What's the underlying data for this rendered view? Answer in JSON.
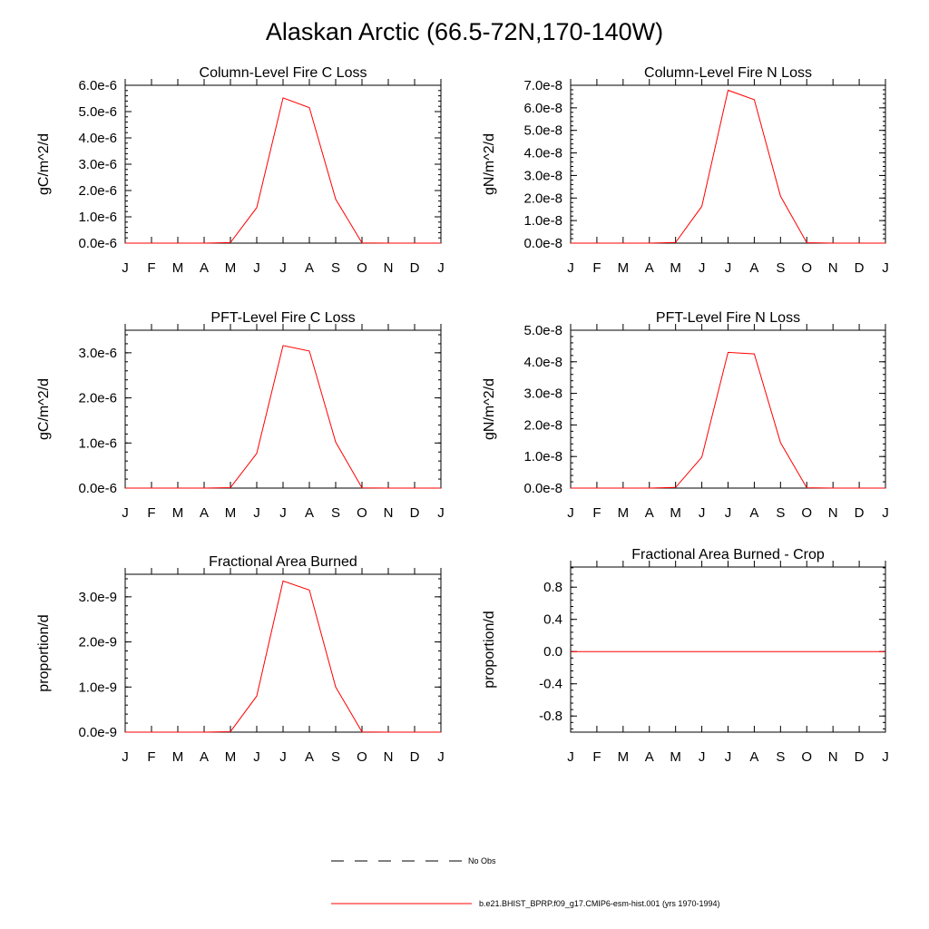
{
  "page_title": "Alaskan Arctic (66.5-72N,170-140W)",
  "colors": {
    "model_line": "#ff0000",
    "obs_line": "#000000",
    "axis": "#000000"
  },
  "legend": [
    {
      "label": "No Obs",
      "style": "dashed"
    },
    {
      "label": "b.e21.BHIST_BPRP.f09_g17.CMIP6-esm-hist.001 (yrs 1970-1994)",
      "style": "solid"
    }
  ],
  "chart_data": [
    {
      "type": "line",
      "title": "Column-Level Fire C Loss",
      "ylabel": "gC/m^2/d",
      "xlabel": "",
      "x": [
        "J",
        "F",
        "M",
        "A",
        "M",
        "J",
        "J",
        "A",
        "S",
        "O",
        "N",
        "D",
        "J"
      ],
      "ylim": [
        0,
        6e-06
      ],
      "yticks": [
        0,
        1e-06,
        2e-06,
        3e-06,
        4e-06,
        5e-06,
        6e-06
      ],
      "ytick_labels": [
        "0.0e-6",
        "1.0e-6",
        "2.0e-6",
        "3.0e-6",
        "4.0e-6",
        "5.0e-6",
        "6.0e-6"
      ],
      "series": [
        {
          "values": [
            0,
            0,
            0,
            0,
            2e-08,
            1.35e-06,
            5.52e-06,
            5.15e-06,
            1.67e-06,
            1e-08,
            0,
            0,
            0
          ]
        }
      ]
    },
    {
      "type": "line",
      "title": "Column-Level Fire N Loss",
      "ylabel": "gN/m^2/d",
      "xlabel": "",
      "x": [
        "J",
        "F",
        "M",
        "A",
        "M",
        "J",
        "J",
        "A",
        "S",
        "O",
        "N",
        "D",
        "J"
      ],
      "ylim": [
        0,
        7e-08
      ],
      "yticks": [
        0,
        1e-08,
        2e-08,
        3e-08,
        4e-08,
        5e-08,
        6e-08,
        7e-08
      ],
      "ytick_labels": [
        "0.0e-8",
        "1.0e-8",
        "2.0e-8",
        "3.0e-8",
        "4.0e-8",
        "5.0e-8",
        "6.0e-8",
        "7.0e-8"
      ],
      "series": [
        {
          "values": [
            0,
            0,
            0,
            0,
            3e-10,
            1.63e-08,
            6.78e-08,
            6.36e-08,
            2.08e-08,
            2e-10,
            0,
            0,
            0
          ]
        }
      ]
    },
    {
      "type": "line",
      "title": "PFT-Level Fire C Loss",
      "ylabel": "gC/m^2/d",
      "xlabel": "",
      "x": [
        "J",
        "F",
        "M",
        "A",
        "M",
        "J",
        "J",
        "A",
        "S",
        "O",
        "N",
        "D",
        "J"
      ],
      "ylim": [
        0,
        3.5e-06
      ],
      "yticks": [
        0,
        1e-06,
        2e-06,
        3e-06
      ],
      "ytick_labels": [
        "0.0e-6",
        "1.0e-6",
        "2.0e-6",
        "3.0e-6"
      ],
      "series": [
        {
          "values": [
            0,
            0,
            0,
            0,
            1e-08,
            7.7e-07,
            3.16e-06,
            3.04e-06,
            1.02e-06,
            5e-09,
            0,
            0,
            0
          ]
        }
      ]
    },
    {
      "type": "line",
      "title": "PFT-Level Fire N Loss",
      "ylabel": "gN/m^2/d",
      "xlabel": "",
      "x": [
        "J",
        "F",
        "M",
        "A",
        "M",
        "J",
        "J",
        "A",
        "S",
        "O",
        "N",
        "D",
        "J"
      ],
      "ylim": [
        0,
        5e-08
      ],
      "yticks": [
        0,
        1e-08,
        2e-08,
        3e-08,
        4e-08,
        5e-08
      ],
      "ytick_labels": [
        "0.0e-8",
        "1.0e-8",
        "2.0e-8",
        "3.0e-8",
        "4.0e-8",
        "5.0e-8"
      ],
      "series": [
        {
          "values": [
            0,
            0,
            0,
            0,
            2e-10,
            9.8e-09,
            4.3e-08,
            4.25e-08,
            1.44e-08,
            1e-10,
            0,
            0,
            0
          ]
        }
      ]
    },
    {
      "type": "line",
      "title": "Fractional Area Burned",
      "ylabel": "proportion/d",
      "xlabel": "",
      "x": [
        "J",
        "F",
        "M",
        "A",
        "M",
        "J",
        "J",
        "A",
        "S",
        "O",
        "N",
        "D",
        "J"
      ],
      "ylim": [
        0,
        3.5e-09
      ],
      "yticks": [
        0,
        1e-09,
        2e-09,
        3e-09
      ],
      "ytick_labels": [
        "0.0e-9",
        "1.0e-9",
        "2.0e-9",
        "3.0e-9"
      ],
      "series": [
        {
          "values": [
            0,
            0,
            0,
            0,
            1e-11,
            8e-10,
            3.35e-09,
            3.15e-09,
            1e-09,
            5e-12,
            0,
            0,
            0
          ]
        }
      ]
    },
    {
      "type": "line",
      "title": "Fractional Area Burned - Crop",
      "ylabel": "proportion/d",
      "xlabel": "",
      "x": [
        "J",
        "F",
        "M",
        "A",
        "M",
        "J",
        "J",
        "A",
        "S",
        "O",
        "N",
        "D",
        "J"
      ],
      "ylim": [
        -1.0,
        1.05
      ],
      "yticks": [
        -0.8,
        -0.4,
        0.0,
        0.4,
        0.8
      ],
      "ytick_labels": [
        "-0.8",
        "-0.4",
        "0.0",
        "0.4",
        "0.8"
      ],
      "series": [
        {
          "values": [
            0,
            0,
            0,
            0,
            0,
            0,
            0,
            0,
            0,
            0,
            0,
            0,
            0
          ]
        }
      ]
    }
  ]
}
